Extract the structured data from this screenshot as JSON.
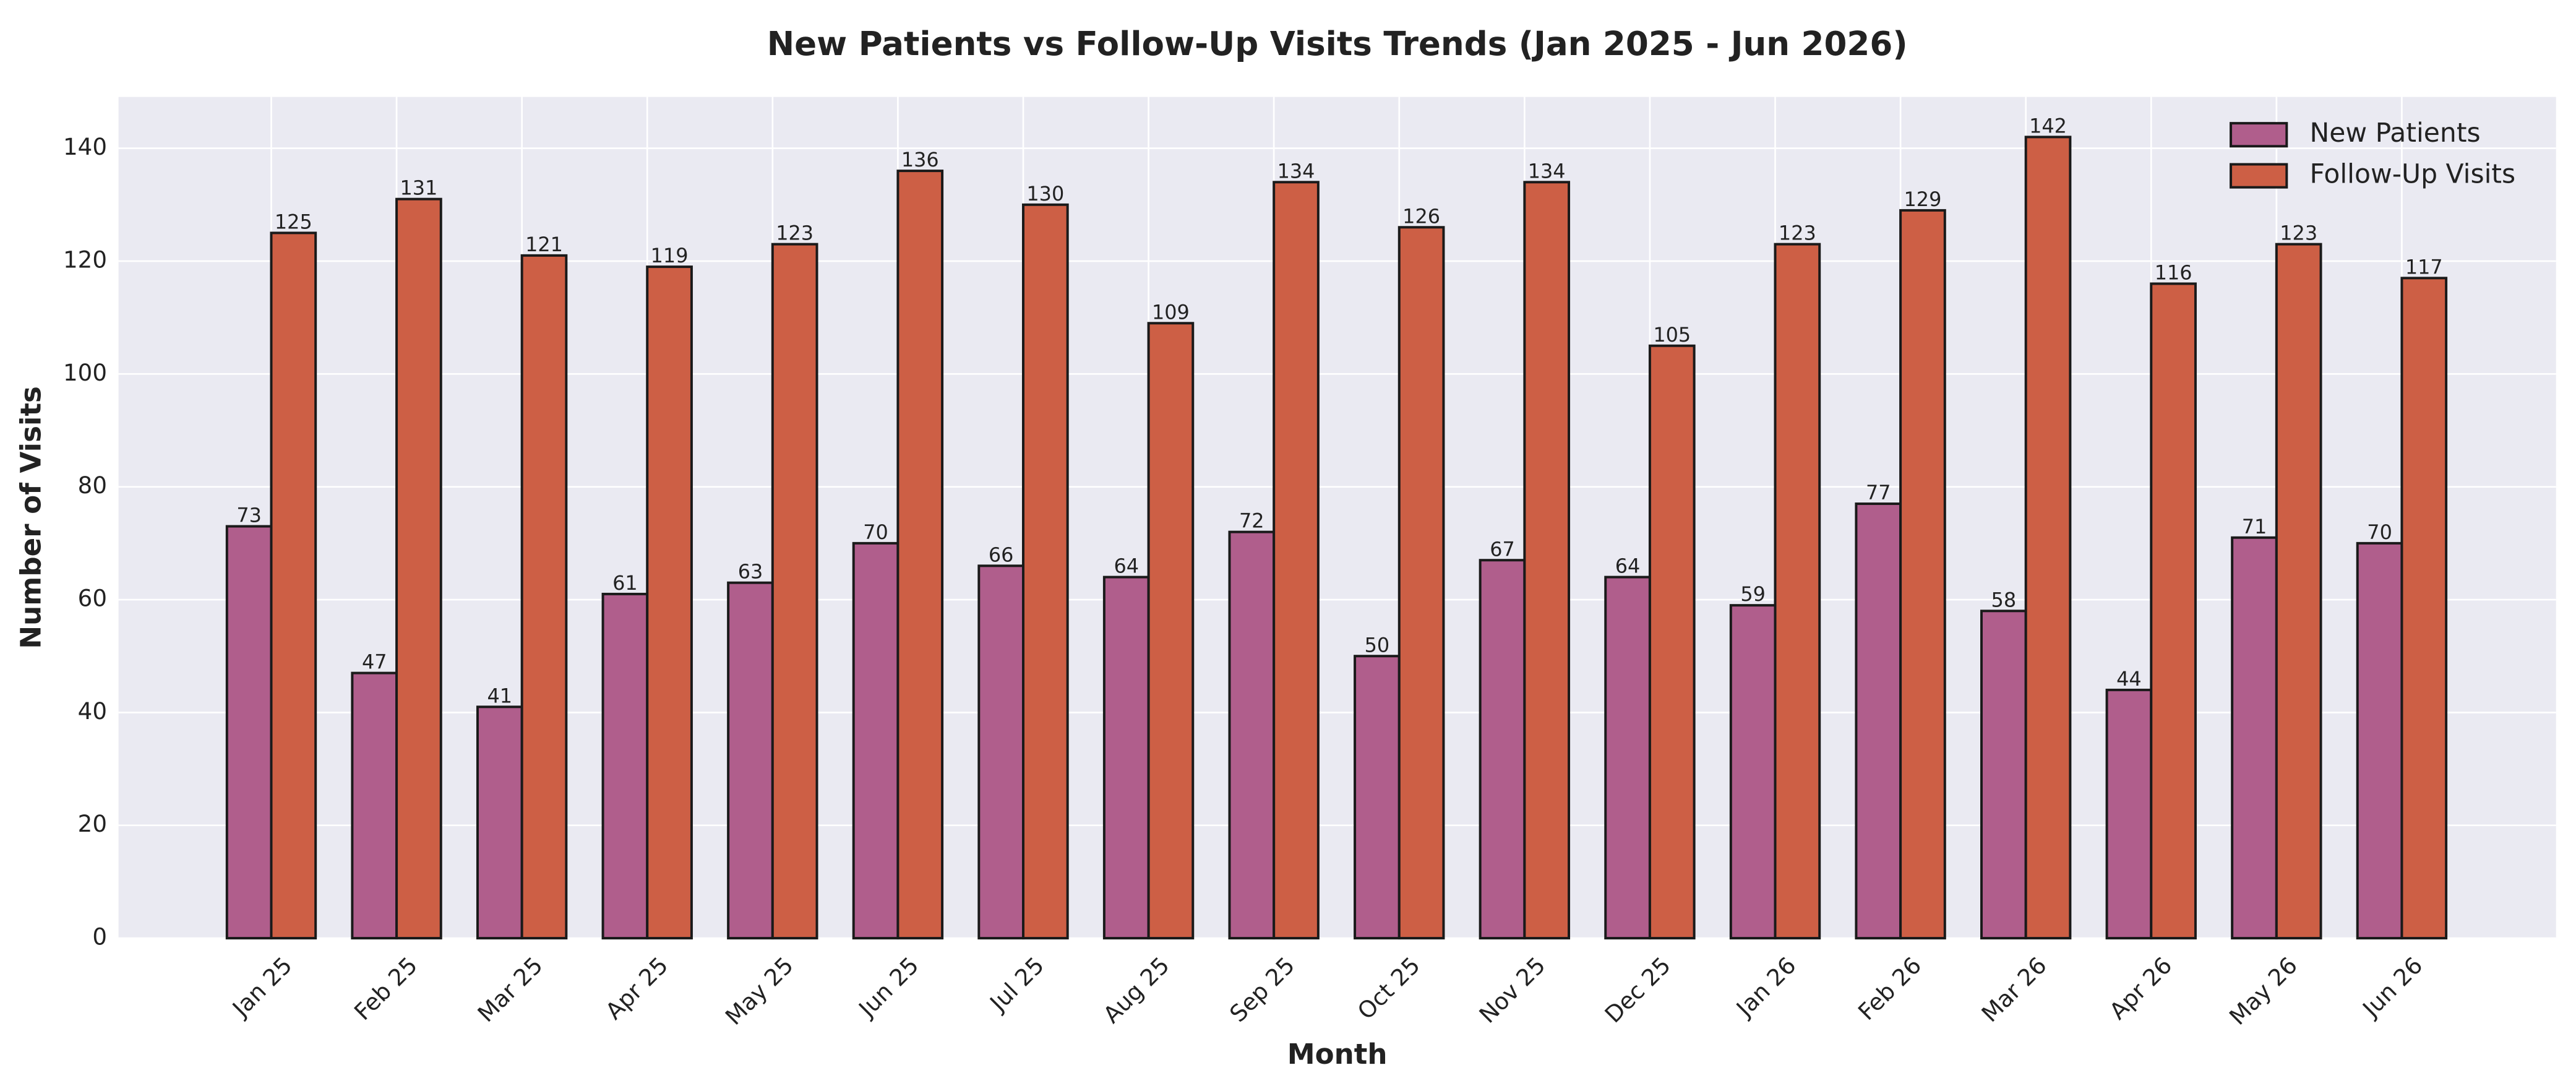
{
  "chart_data": {
    "type": "bar",
    "title": "New Patients vs Follow-Up Visits Trends (Jan 2025 - Jun 2026)",
    "x_label": "Month",
    "y_label": "Number of Visits",
    "categories": [
      "Jan 25",
      "Feb 25",
      "Mar 25",
      "Apr 25",
      "May 25",
      "Jun 25",
      "Jul 25",
      "Aug 25",
      "Sep 25",
      "Oct 25",
      "Nov 25",
      "Dec 25",
      "Jan 26",
      "Feb 26",
      "Mar 26",
      "Apr 26",
      "May 26",
      "Jun 26"
    ],
    "series": [
      {
        "name": "New Patients",
        "color": "#b05e8c",
        "values": [
          73,
          47,
          41,
          61,
          63,
          70,
          66,
          64,
          72,
          50,
          67,
          64,
          59,
          77,
          58,
          44,
          71,
          70
        ]
      },
      {
        "name": "Follow-Up Visits",
        "color": "#cd5f45",
        "values": [
          125,
          131,
          121,
          119,
          123,
          136,
          130,
          109,
          134,
          126,
          134,
          105,
          123,
          129,
          142,
          116,
          123,
          117
        ]
      }
    ],
    "ylim": [
      0,
      149.1
    ],
    "yticks": [
      0,
      20,
      40,
      60,
      80,
      100,
      120,
      140
    ],
    "grid": true,
    "legend": "upper right"
  }
}
